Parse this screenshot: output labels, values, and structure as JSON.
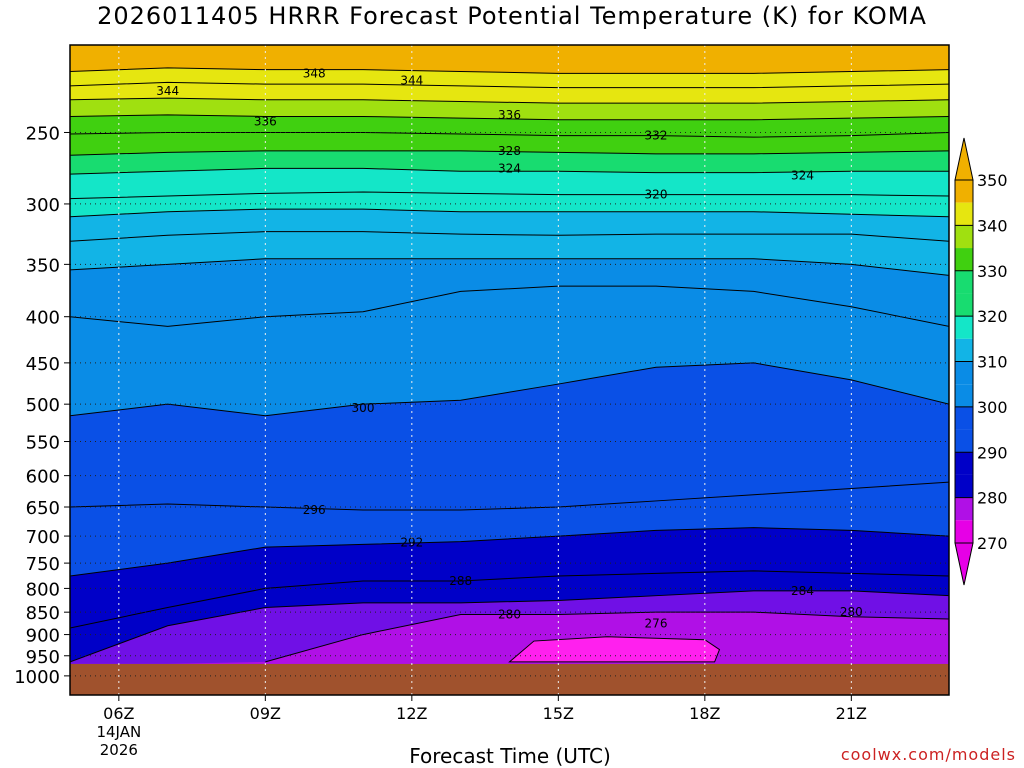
{
  "title": "2026011405 HRRR Forecast Potential Temperature (K) for KOMA",
  "credit": "coolwx.com/models",
  "chart_data": {
    "type": "area",
    "title": "2026011405 HRRR Forecast Potential Temperature (K) for KOMA",
    "xlabel": "Forecast Time (UTC)",
    "ylabel": "",
    "x_ticks": [
      "06Z",
      "09Z",
      "12Z",
      "15Z",
      "18Z",
      "21Z"
    ],
    "x_date_label": [
      "14JAN",
      "2026"
    ],
    "x_range": [
      5,
      23
    ],
    "y_scale": "log",
    "y_range": [
      1050,
      200
    ],
    "y_ticks": [
      250,
      300,
      350,
      400,
      450,
      500,
      550,
      600,
      650,
      700,
      750,
      800,
      850,
      900,
      950,
      1000
    ],
    "surface_pressure": 970,
    "grid": true,
    "times": [
      5,
      7,
      9,
      11,
      13,
      15,
      17,
      19,
      21,
      23
    ],
    "isentropes": [
      {
        "theta": 276,
        "closed": true,
        "points": [
          [
            14,
            965
          ],
          [
            14.5,
            915
          ],
          [
            16,
            905
          ],
          [
            18,
            912
          ],
          [
            18.3,
            935
          ],
          [
            18.2,
            965
          ]
        ]
      },
      {
        "theta": 280,
        "p": [
          null,
          null,
          965,
          900,
          855,
          855,
          850,
          850,
          860,
          865
        ]
      },
      {
        "theta": 284,
        "p": [
          965,
          880,
          840,
          830,
          830,
          825,
          815,
          805,
          805,
          815
        ]
      },
      {
        "theta": 288,
        "p": [
          885,
          840,
          800,
          785,
          785,
          775,
          770,
          765,
          770,
          775
        ]
      },
      {
        "theta": 292,
        "p": [
          775,
          750,
          720,
          715,
          710,
          700,
          690,
          685,
          690,
          700
        ]
      },
      {
        "theta": 296,
        "p": [
          650,
          645,
          650,
          655,
          655,
          650,
          640,
          630,
          620,
          610
        ]
      },
      {
        "theta": 300,
        "p": [
          515,
          500,
          515,
          500,
          495,
          475,
          455,
          450,
          470,
          500
        ]
      },
      {
        "theta": 304,
        "p": [
          400,
          410,
          400,
          395,
          375,
          370,
          370,
          375,
          390,
          410
        ]
      },
      {
        "theta": 308,
        "p": [
          355,
          350,
          345,
          345,
          345,
          345,
          345,
          345,
          350,
          360
        ]
      },
      {
        "theta": 312,
        "p": [
          330,
          325,
          322,
          322,
          324,
          325,
          324,
          324,
          324,
          330
        ]
      },
      {
        "theta": 316,
        "p": [
          310,
          306,
          304,
          304,
          306,
          306,
          306,
          306,
          308,
          310
        ]
      },
      {
        "theta": 320,
        "p": [
          296,
          294,
          292,
          291,
          292,
          293,
          293,
          293,
          293,
          294
        ]
      },
      {
        "theta": 324,
        "p": [
          278,
          276,
          274,
          274,
          276,
          276,
          277,
          277,
          276,
          276
        ]
      },
      {
        "theta": 328,
        "p": [
          265,
          263,
          262,
          262,
          262,
          263,
          264,
          264,
          263,
          262
        ]
      },
      {
        "theta": 332,
        "p": [
          251,
          250,
          250,
          250,
          251,
          252,
          252,
          253,
          252,
          250
        ]
      },
      {
        "theta": 336,
        "p": [
          240,
          239,
          240,
          240,
          241,
          242,
          242,
          242,
          241,
          240
        ]
      },
      {
        "theta": 340,
        "p": [
          230,
          229,
          230,
          230,
          231,
          232,
          232,
          232,
          231,
          230
        ]
      },
      {
        "theta": 344,
        "p": [
          222,
          220,
          221,
          221,
          222,
          223,
          223,
          223,
          222,
          221
        ]
      },
      {
        "theta": 348,
        "p": [
          214,
          212,
          213,
          213,
          214,
          215,
          215,
          215,
          214,
          213
        ]
      }
    ],
    "contour_labels": [
      {
        "text": "348",
        "t": 10,
        "p": 215
      },
      {
        "text": "344",
        "t": 12,
        "p": 219
      },
      {
        "text": "344",
        "t": 7,
        "p": 225
      },
      {
        "text": "336",
        "t": 9,
        "p": 243
      },
      {
        "text": "336",
        "t": 14,
        "p": 239
      },
      {
        "text": "332",
        "t": 17,
        "p": 252
      },
      {
        "text": "328",
        "t": 14,
        "p": 262
      },
      {
        "text": "324",
        "t": 14,
        "p": 274
      },
      {
        "text": "324",
        "t": 20,
        "p": 279
      },
      {
        "text": "320",
        "t": 17,
        "p": 293
      },
      {
        "text": "300",
        "t": 11,
        "p": 505
      },
      {
        "text": "296",
        "t": 10,
        "p": 655
      },
      {
        "text": "292",
        "t": 12,
        "p": 712
      },
      {
        "text": "288",
        "t": 13,
        "p": 785
      },
      {
        "text": "284",
        "t": 20,
        "p": 805
      },
      {
        "text": "280",
        "t": 14,
        "p": 855
      },
      {
        "text": "280",
        "t": 21,
        "p": 850
      },
      {
        "text": "276",
        "t": 17,
        "p": 875
      }
    ],
    "colorbar": {
      "levels": [
        270,
        280,
        290,
        300,
        310,
        320,
        330,
        340,
        350
      ],
      "colors": [
        "#e600e6",
        "#b010e6",
        "#7010e6",
        "#0000c8",
        "#0a50e6",
        "#0a8ce6",
        "#12b4e6",
        "#14e6c8",
        "#18dc70",
        "#40d010",
        "#a0e010",
        "#e6e610",
        "#f0b000"
      ],
      "bin_bounds": [
        270,
        276,
        280,
        284,
        292,
        300,
        310,
        316,
        324,
        330,
        336,
        340,
        348
      ]
    }
  }
}
